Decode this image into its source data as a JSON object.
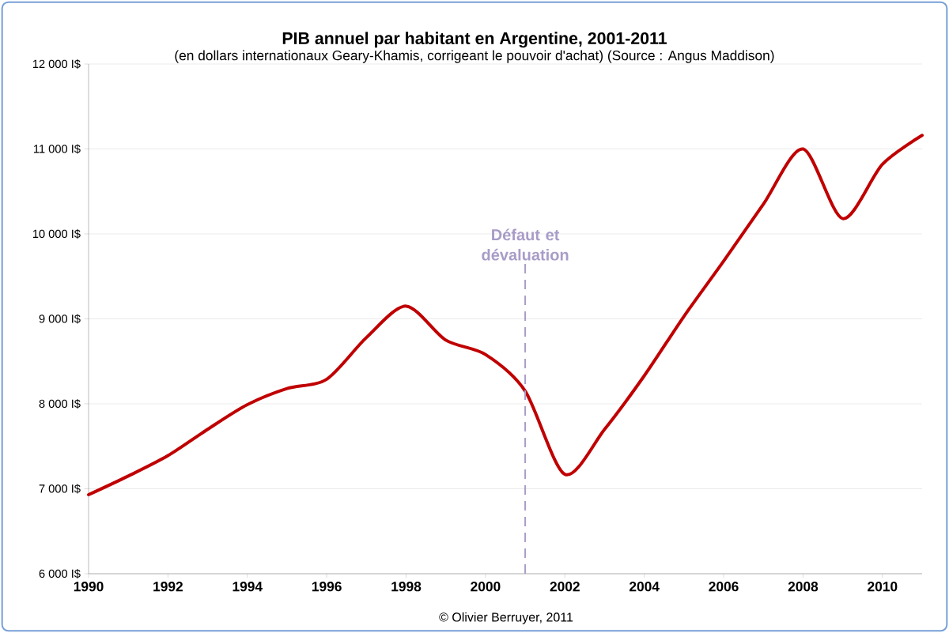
{
  "chart_data": {
    "type": "line",
    "title": "PIB annuel par habitant en Argentine, 2001-2011",
    "subtitle": "(en dollars internationaux Geary-Khamis, corrigeant le pouvoir d'achat) (Source : Angus Maddison)",
    "x": [
      1990,
      1991,
      1992,
      1993,
      1994,
      1995,
      1996,
      1997,
      1998,
      1999,
      2000,
      2001,
      2002,
      2003,
      2004,
      2005,
      2006,
      2007,
      2008,
      2009,
      2010,
      2011
    ],
    "series": [
      {
        "color": "#c00000",
        "values": [
          6930,
          7150,
          7390,
          7700,
          7990,
          8180,
          8290,
          8780,
          9150,
          8750,
          8580,
          8150,
          7170,
          7700,
          8330,
          9030,
          9680,
          10350,
          11000,
          10180,
          10820,
          11160
        ]
      }
    ],
    "xlim": [
      1990,
      2011
    ],
    "xticks": [
      1990,
      1992,
      1994,
      1996,
      1998,
      2000,
      2002,
      2004,
      2006,
      2008,
      2010
    ],
    "ylim": [
      6000,
      12000
    ],
    "yticks": [
      {
        "value": 6000,
        "label": "6 000 I$"
      },
      {
        "value": 7000,
        "label": "7 000 I$"
      },
      {
        "value": 8000,
        "label": "8 000 I$"
      },
      {
        "value": 9000,
        "label": "9 000 I$"
      },
      {
        "value": 10000,
        "label": "10 000 I$"
      },
      {
        "value": 11000,
        "label": "11 000 I$"
      },
      {
        "value": 12000,
        "label": "12 000 I$"
      }
    ],
    "grid": "y",
    "marker": "none",
    "line_style": "solid",
    "ref_lines": [
      {
        "axis": "x",
        "value": 2001,
        "label": "Défaut et dévaluation",
        "color": "#a89cc8",
        "line_style": "dashed"
      }
    ],
    "annotations": [
      "© Olivier Berruyer, 2011"
    ]
  }
}
